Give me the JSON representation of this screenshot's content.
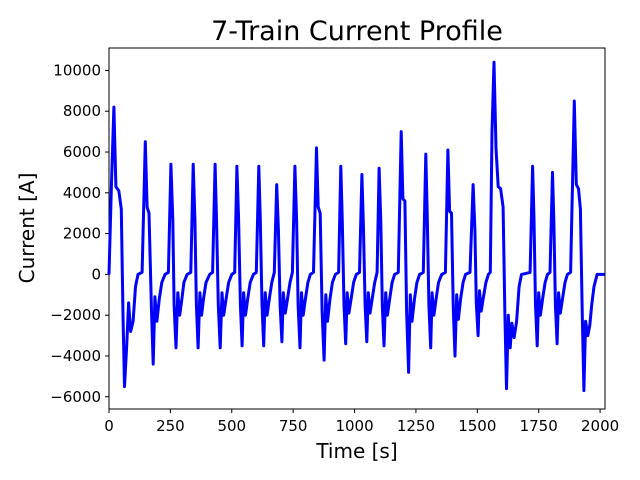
{
  "chart_data": {
    "type": "line",
    "title": "7-Train Current Profile",
    "xlabel": "Time [s]",
    "ylabel": "Current [A]",
    "xlim": [
      0,
      2020
    ],
    "ylim": [
      -6600,
      11100
    ],
    "grid": false,
    "legend": "none",
    "line_color": "#0000ff",
    "x_ticks": [
      0,
      250,
      500,
      750,
      1000,
      1250,
      1500,
      1750,
      2000
    ],
    "y_ticks": [
      -6000,
      -4000,
      -2000,
      0,
      2000,
      4000,
      6000,
      8000,
      10000
    ],
    "series": [
      {
        "name": "",
        "points": [
          [
            0,
            0
          ],
          [
            10,
            4500
          ],
          [
            20,
            8200
          ],
          [
            28,
            4300
          ],
          [
            40,
            4100
          ],
          [
            50,
            3200
          ],
          [
            57,
            -2000
          ],
          [
            63,
            -5500
          ],
          [
            72,
            -3500
          ],
          [
            80,
            -1400
          ],
          [
            88,
            -2800
          ],
          [
            98,
            -2300
          ],
          [
            108,
            -600
          ],
          [
            118,
            0
          ],
          [
            135,
            100
          ],
          [
            148,
            6500
          ],
          [
            155,
            3300
          ],
          [
            163,
            3000
          ],
          [
            173,
            -1800
          ],
          [
            180,
            -4400
          ],
          [
            187,
            -1100
          ],
          [
            195,
            -2300
          ],
          [
            205,
            -1200
          ],
          [
            215,
            -400
          ],
          [
            228,
            0
          ],
          [
            242,
            100
          ],
          [
            252,
            5400
          ],
          [
            260,
            2700
          ],
          [
            265,
            -1500
          ],
          [
            273,
            -3600
          ],
          [
            280,
            -900
          ],
          [
            288,
            -2000
          ],
          [
            297,
            -1200
          ],
          [
            305,
            -400
          ],
          [
            318,
            0
          ],
          [
            333,
            100
          ],
          [
            343,
            5400
          ],
          [
            350,
            2700
          ],
          [
            356,
            -1500
          ],
          [
            363,
            -3600
          ],
          [
            370,
            -900
          ],
          [
            377,
            -2000
          ],
          [
            385,
            -1200
          ],
          [
            395,
            -400
          ],
          [
            410,
            0
          ],
          [
            422,
            100
          ],
          [
            432,
            5400
          ],
          [
            438,
            2700
          ],
          [
            445,
            -1500
          ],
          [
            453,
            -3600
          ],
          [
            460,
            -900
          ],
          [
            467,
            -2000
          ],
          [
            477,
            -1200
          ],
          [
            487,
            -400
          ],
          [
            500,
            0
          ],
          [
            512,
            100
          ],
          [
            521,
            5300
          ],
          [
            528,
            2700
          ],
          [
            535,
            -1500
          ],
          [
            542,
            -3500
          ],
          [
            548,
            -900
          ],
          [
            556,
            -2000
          ],
          [
            565,
            -1200
          ],
          [
            575,
            -400
          ],
          [
            588,
            0
          ],
          [
            600,
            100
          ],
          [
            610,
            5300
          ],
          [
            616,
            2700
          ],
          [
            623,
            -1500
          ],
          [
            630,
            -3500
          ],
          [
            636,
            -900
          ],
          [
            644,
            -2000
          ],
          [
            653,
            -1200
          ],
          [
            663,
            -400
          ],
          [
            673,
            100
          ],
          [
            683,
            4400
          ],
          [
            690,
            2200
          ],
          [
            697,
            -1500
          ],
          [
            704,
            -3300
          ],
          [
            710,
            -900
          ],
          [
            718,
            -1900
          ],
          [
            727,
            -1200
          ],
          [
            737,
            -400
          ],
          [
            747,
            100
          ],
          [
            757,
            5300
          ],
          [
            764,
            2700
          ],
          [
            770,
            -1500
          ],
          [
            778,
            -3600
          ],
          [
            784,
            -900
          ],
          [
            791,
            -2000
          ],
          [
            800,
            -1200
          ],
          [
            810,
            -400
          ],
          [
            820,
            0
          ],
          [
            833,
            100
          ],
          [
            845,
            6200
          ],
          [
            852,
            3300
          ],
          [
            860,
            3000
          ],
          [
            868,
            -1800
          ],
          [
            876,
            -4200
          ],
          [
            883,
            -1000
          ],
          [
            890,
            -2300
          ],
          [
            900,
            -1200
          ],
          [
            910,
            -400
          ],
          [
            922,
            0
          ],
          [
            935,
            100
          ],
          [
            944,
            5300
          ],
          [
            950,
            2600
          ],
          [
            957,
            -1500
          ],
          [
            964,
            -3400
          ],
          [
            970,
            -900
          ],
          [
            977,
            -1900
          ],
          [
            986,
            -1200
          ],
          [
            996,
            -400
          ],
          [
            1007,
            0
          ],
          [
            1020,
            100
          ],
          [
            1030,
            4900
          ],
          [
            1036,
            2400
          ],
          [
            1043,
            -1500
          ],
          [
            1050,
            -3300
          ],
          [
            1056,
            -900
          ],
          [
            1063,
            -1900
          ],
          [
            1072,
            -1200
          ],
          [
            1082,
            -400
          ],
          [
            1092,
            100
          ],
          [
            1100,
            5200
          ],
          [
            1107,
            2600
          ],
          [
            1113,
            -1500
          ],
          [
            1120,
            -3500
          ],
          [
            1127,
            -900
          ],
          [
            1134,
            -2000
          ],
          [
            1143,
            -1200
          ],
          [
            1153,
            -400
          ],
          [
            1163,
            0
          ],
          [
            1178,
            100
          ],
          [
            1190,
            7000
          ],
          [
            1197,
            3700
          ],
          [
            1205,
            3600
          ],
          [
            1212,
            -1800
          ],
          [
            1220,
            -4800
          ],
          [
            1227,
            -1000
          ],
          [
            1234,
            -2300
          ],
          [
            1244,
            -1200
          ],
          [
            1254,
            -400
          ],
          [
            1265,
            0
          ],
          [
            1280,
            100
          ],
          [
            1290,
            5900
          ],
          [
            1296,
            3000
          ],
          [
            1303,
            -1500
          ],
          [
            1310,
            -3600
          ],
          [
            1316,
            -900
          ],
          [
            1323,
            -2000
          ],
          [
            1332,
            -1200
          ],
          [
            1342,
            -400
          ],
          [
            1355,
            0
          ],
          [
            1370,
            100
          ],
          [
            1380,
            6100
          ],
          [
            1387,
            3100
          ],
          [
            1395,
            3000
          ],
          [
            1402,
            -1700
          ],
          [
            1409,
            -4000
          ],
          [
            1416,
            -1000
          ],
          [
            1423,
            -2200
          ],
          [
            1432,
            -1200
          ],
          [
            1442,
            -400
          ],
          [
            1452,
            0
          ],
          [
            1470,
            100
          ],
          [
            1483,
            4400
          ],
          [
            1490,
            2200
          ],
          [
            1496,
            -1400
          ],
          [
            1503,
            -3000
          ],
          [
            1509,
            -800
          ],
          [
            1516,
            -1800
          ],
          [
            1525,
            -1100
          ],
          [
            1535,
            -400
          ],
          [
            1545,
            0
          ],
          [
            1553,
            100
          ],
          [
            1560,
            7000
          ],
          [
            1568,
            10400
          ],
          [
            1576,
            6200
          ],
          [
            1585,
            4300
          ],
          [
            1595,
            4200
          ],
          [
            1605,
            3300
          ],
          [
            1612,
            -1700
          ],
          [
            1619,
            -5600
          ],
          [
            1626,
            -2000
          ],
          [
            1634,
            -3600
          ],
          [
            1641,
            -2400
          ],
          [
            1650,
            -3100
          ],
          [
            1660,
            -2300
          ],
          [
            1670,
            -600
          ],
          [
            1680,
            0
          ],
          [
            1715,
            100
          ],
          [
            1725,
            5300
          ],
          [
            1731,
            2700
          ],
          [
            1737,
            -1500
          ],
          [
            1744,
            -3500
          ],
          [
            1750,
            -900
          ],
          [
            1757,
            -2000
          ],
          [
            1766,
            -1200
          ],
          [
            1776,
            -400
          ],
          [
            1786,
            0
          ],
          [
            1796,
            100
          ],
          [
            1806,
            5000
          ],
          [
            1812,
            2500
          ],
          [
            1818,
            -1500
          ],
          [
            1825,
            -3400
          ],
          [
            1831,
            -900
          ],
          [
            1838,
            -1900
          ],
          [
            1847,
            -1200
          ],
          [
            1857,
            -400
          ],
          [
            1867,
            0
          ],
          [
            1880,
            100
          ],
          [
            1895,
            8500
          ],
          [
            1903,
            4400
          ],
          [
            1912,
            4200
          ],
          [
            1920,
            3200
          ],
          [
            1927,
            -1800
          ],
          [
            1934,
            -5700
          ],
          [
            1941,
            -2300
          ],
          [
            1950,
            -3000
          ],
          [
            1958,
            -2500
          ],
          [
            1966,
            -1500
          ],
          [
            1975,
            -600
          ],
          [
            1988,
            0
          ],
          [
            2020,
            0
          ]
        ]
      }
    ]
  }
}
